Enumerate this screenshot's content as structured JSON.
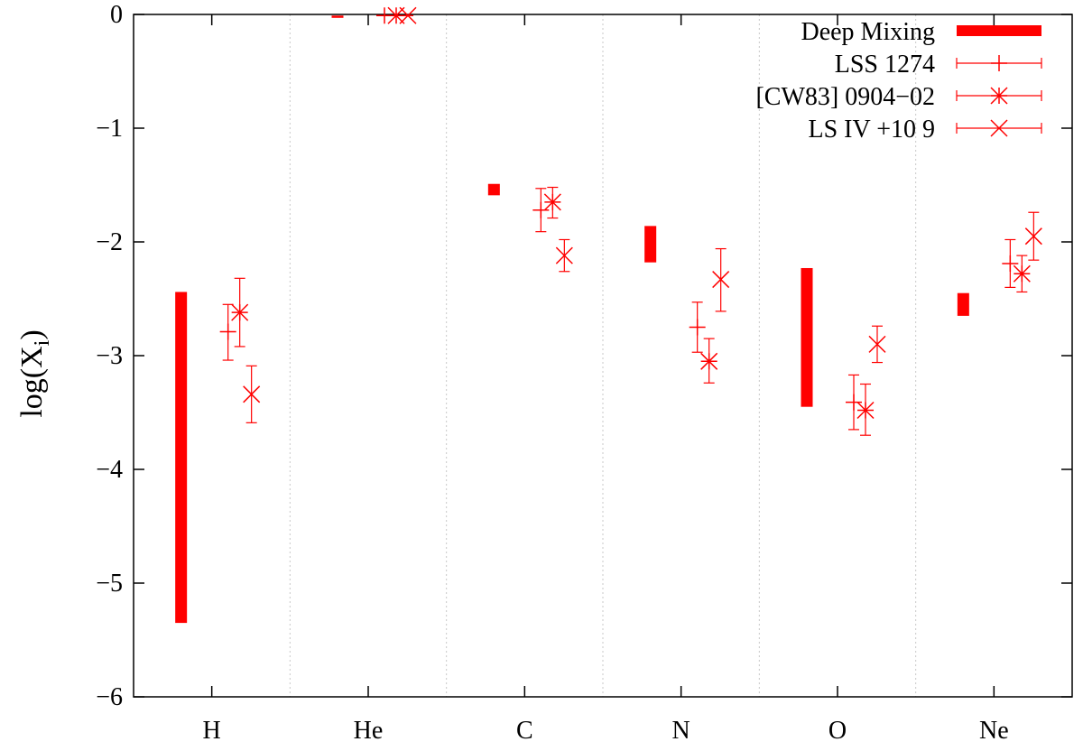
{
  "chart_data": {
    "type": "errorbar",
    "title": "",
    "xlabel": "",
    "ylabel": "log(X",
    "ylabel_subscript": "i",
    "ylabel_close": ")",
    "categories": [
      "H",
      "He",
      "C",
      "N",
      "O",
      "Ne"
    ],
    "ylim": [
      -6,
      0
    ],
    "yticks": [
      0,
      -1,
      -2,
      -3,
      -4,
      -5,
      -6
    ],
    "ytick_labels": [
      "0",
      "−1",
      "−2",
      "−3",
      "−4",
      "−5",
      "−6"
    ],
    "grid": "vertical dotted separators between categories",
    "legend_position": "top-right",
    "color": "#ff0000",
    "deep_mixing": {
      "name": "Deep Mixing",
      "ranges": [
        {
          "element": "H",
          "low": -5.35,
          "high": -2.44
        },
        {
          "element": "He",
          "low": -0.03,
          "high": -0.01
        },
        {
          "element": "C",
          "low": -1.59,
          "high": -1.49
        },
        {
          "element": "N",
          "low": -2.18,
          "high": -1.86
        },
        {
          "element": "O",
          "low": -3.45,
          "high": -2.23
        },
        {
          "element": "Ne",
          "low": -2.65,
          "high": -2.45
        }
      ]
    },
    "series": [
      {
        "name": "LSS 1274",
        "marker": "plus",
        "points": [
          {
            "element": "H",
            "value": -2.79,
            "low": -3.04,
            "high": -2.55
          },
          {
            "element": "He",
            "value": -0.01,
            "low": -0.01,
            "high": -0.01
          },
          {
            "element": "C",
            "value": -1.72,
            "low": -1.91,
            "high": -1.53
          },
          {
            "element": "N",
            "value": -2.75,
            "low": -2.97,
            "high": -2.53
          },
          {
            "element": "O",
            "value": -3.41,
            "low": -3.65,
            "high": -3.17
          },
          {
            "element": "Ne",
            "value": -2.19,
            "low": -2.4,
            "high": -1.98
          }
        ]
      },
      {
        "name": "[CW83] 0904−02",
        "marker": "star",
        "points": [
          {
            "element": "H",
            "value": -2.62,
            "low": -2.92,
            "high": -2.32
          },
          {
            "element": "He",
            "value": -0.01,
            "low": -0.01,
            "high": -0.01
          },
          {
            "element": "C",
            "value": -1.65,
            "low": -1.79,
            "high": -1.52
          },
          {
            "element": "N",
            "value": -3.05,
            "low": -3.24,
            "high": -2.85
          },
          {
            "element": "O",
            "value": -3.48,
            "low": -3.7,
            "high": -3.25
          },
          {
            "element": "Ne",
            "value": -2.28,
            "low": -2.44,
            "high": -2.12
          }
        ]
      },
      {
        "name": "LS IV +10 9",
        "marker": "cross",
        "points": [
          {
            "element": "H",
            "value": -3.34,
            "low": -3.59,
            "high": -3.09
          },
          {
            "element": "He",
            "value": -0.01,
            "low": -0.01,
            "high": -0.01
          },
          {
            "element": "C",
            "value": -2.12,
            "low": -2.26,
            "high": -1.98
          },
          {
            "element": "N",
            "value": -2.33,
            "low": -2.61,
            "high": -2.06
          },
          {
            "element": "O",
            "value": -2.9,
            "low": -3.06,
            "high": -2.74
          },
          {
            "element": "Ne",
            "value": -1.95,
            "low": -2.16,
            "high": -1.74
          }
        ]
      }
    ]
  }
}
